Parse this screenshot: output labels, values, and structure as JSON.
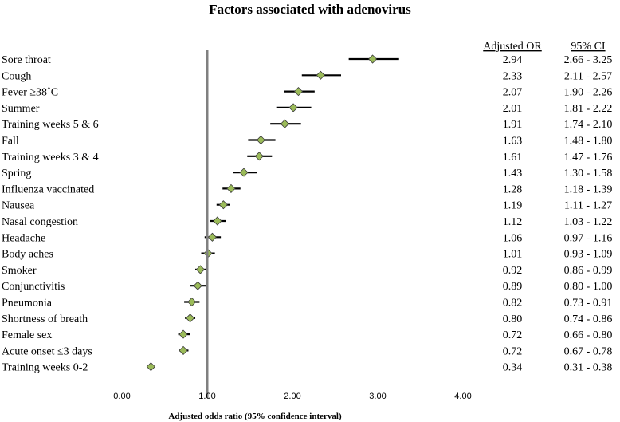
{
  "chart_data": {
    "type": "forest",
    "title": "Factors associated with adenovirus",
    "xlabel": "Adjusted odds ratio (95% confidence interval)",
    "xlim": [
      0,
      4
    ],
    "x_ticks": [
      "0.00",
      "1.00",
      "2.00",
      "3.00",
      "4.00"
    ],
    "reference_line": 1.0,
    "column_headers": {
      "or": "Adjusted OR",
      "ci": "95% CI"
    },
    "marker_color": "#9bbb59",
    "rows": [
      {
        "label": "Sore throat",
        "or": 2.94,
        "lo": 2.66,
        "hi": 3.25,
        "or_text": "2.94",
        "ci_text": "2.66 - 3.25"
      },
      {
        "label": "Cough",
        "or": 2.33,
        "lo": 2.11,
        "hi": 2.57,
        "or_text": "2.33",
        "ci_text": "2.11 - 2.57"
      },
      {
        "label": "Fever ≥38˚C",
        "or": 2.07,
        "lo": 1.9,
        "hi": 2.26,
        "or_text": "2.07",
        "ci_text": "1.90 - 2.26"
      },
      {
        "label": "Summer",
        "or": 2.01,
        "lo": 1.81,
        "hi": 2.22,
        "or_text": "2.01",
        "ci_text": "1.81 - 2.22"
      },
      {
        "label": "Training weeks 5 & 6",
        "or": 1.91,
        "lo": 1.74,
        "hi": 2.1,
        "or_text": "1.91",
        "ci_text": "1.74 - 2.10"
      },
      {
        "label": "Fall",
        "or": 1.63,
        "lo": 1.48,
        "hi": 1.8,
        "or_text": "1.63",
        "ci_text": "1.48 - 1.80"
      },
      {
        "label": "Training weeks 3 & 4",
        "or": 1.61,
        "lo": 1.47,
        "hi": 1.76,
        "or_text": "1.61",
        "ci_text": "1.47 - 1.76"
      },
      {
        "label": "Spring",
        "or": 1.43,
        "lo": 1.3,
        "hi": 1.58,
        "or_text": "1.43",
        "ci_text": "1.30 - 1.58"
      },
      {
        "label": "Influenza vaccinated",
        "or": 1.28,
        "lo": 1.18,
        "hi": 1.39,
        "or_text": "1.28",
        "ci_text": "1.18 - 1.39"
      },
      {
        "label": "Nausea",
        "or": 1.19,
        "lo": 1.11,
        "hi": 1.27,
        "or_text": "1.19",
        "ci_text": "1.11 - 1.27"
      },
      {
        "label": "Nasal congestion",
        "or": 1.12,
        "lo": 1.03,
        "hi": 1.22,
        "or_text": "1.12",
        "ci_text": "1.03 - 1.22"
      },
      {
        "label": "Headache",
        "or": 1.06,
        "lo": 0.97,
        "hi": 1.16,
        "or_text": "1.06",
        "ci_text": "0.97 - 1.16"
      },
      {
        "label": "Body aches",
        "or": 1.01,
        "lo": 0.93,
        "hi": 1.09,
        "or_text": "1.01",
        "ci_text": "0.93 - 1.09"
      },
      {
        "label": "Smoker",
        "or": 0.92,
        "lo": 0.86,
        "hi": 0.99,
        "or_text": "0.92",
        "ci_text": "0.86 - 0.99"
      },
      {
        "label": "Conjunctivitis",
        "or": 0.89,
        "lo": 0.8,
        "hi": 1.0,
        "or_text": "0.89",
        "ci_text": "0.80 - 1.00"
      },
      {
        "label": "Pneumonia",
        "or": 0.82,
        "lo": 0.73,
        "hi": 0.91,
        "or_text": "0.82",
        "ci_text": "0.73 - 0.91"
      },
      {
        "label": "Shortness of breath",
        "or": 0.8,
        "lo": 0.74,
        "hi": 0.86,
        "or_text": "0.80",
        "ci_text": "0.74 - 0.86"
      },
      {
        "label": "Female sex",
        "or": 0.72,
        "lo": 0.66,
        "hi": 0.8,
        "or_text": "0.72",
        "ci_text": "0.66 - 0.80"
      },
      {
        "label": "Acute onset ≤3 days",
        "or": 0.72,
        "lo": 0.67,
        "hi": 0.78,
        "or_text": "0.72",
        "ci_text": "0.67 - 0.78"
      },
      {
        "label": "Training weeks 0-2",
        "or": 0.34,
        "lo": 0.31,
        "hi": 0.38,
        "or_text": "0.34",
        "ci_text": "0.31 - 0.38"
      }
    ]
  }
}
